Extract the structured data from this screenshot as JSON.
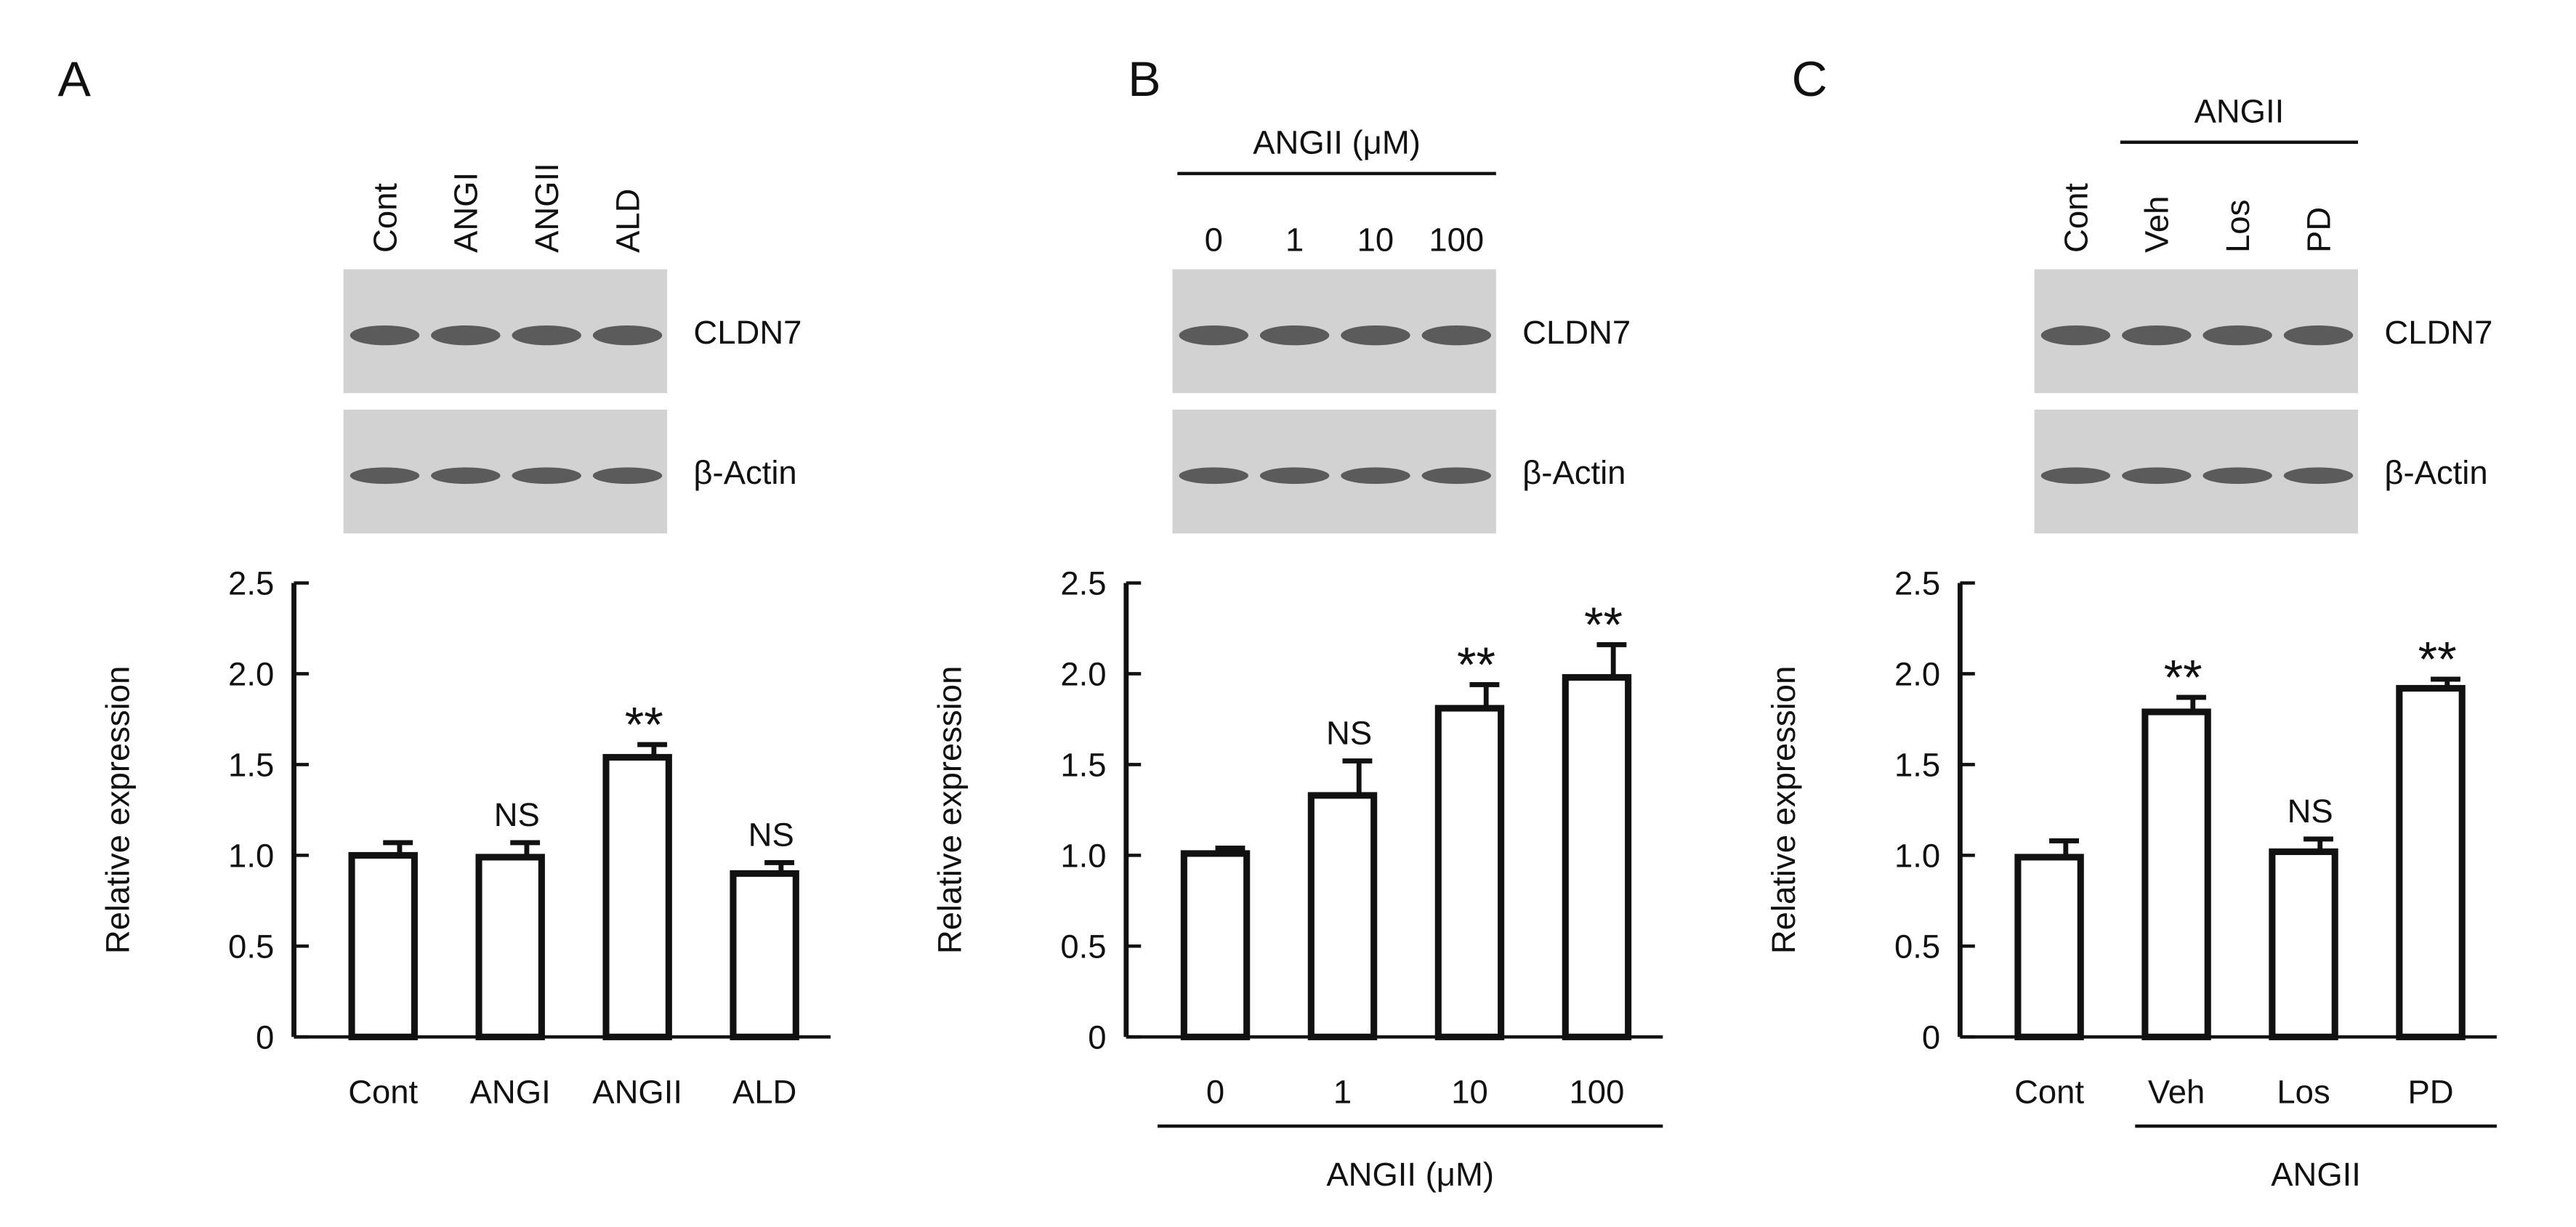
{
  "chart_data": [
    {
      "type": "bar",
      "panel": "A",
      "categories": [
        "Cont",
        "ANGI",
        "ANGII",
        "ALD"
      ],
      "values": [
        1.0,
        0.99,
        1.54,
        0.9
      ],
      "errors": [
        0.07,
        0.08,
        0.07,
        0.06
      ],
      "annotations": [
        null,
        "NS",
        "**",
        "NS"
      ],
      "blot_labels": [
        "CLDN7",
        "β-Actin"
      ],
      "y_label": "Relative expression",
      "ylim": [
        0,
        2.5
      ],
      "yticks": [
        0,
        0.5,
        {
          "value": 1,
          "label": "1.0"
        },
        1.5,
        {
          "value": 2,
          "label": "2.0"
        },
        2.5
      ],
      "color": "#ffffff"
    },
    {
      "type": "bar",
      "panel": "B",
      "categories": [
        "0",
        "1",
        "10",
        "100"
      ],
      "values": [
        1.01,
        1.33,
        1.81,
        1.98
      ],
      "errors": [
        0.03,
        0.19,
        0.13,
        0.18
      ],
      "annotations": [
        null,
        "NS",
        "**",
        "**"
      ],
      "group_label": "ANGII  (μM)",
      "blot_labels": [
        "CLDN7",
        "β-Actin"
      ],
      "y_label": "Relative expression",
      "ylim": [
        0,
        2.5
      ],
      "yticks": [
        0,
        0.5,
        {
          "value": 1,
          "label": "1.0"
        },
        1.5,
        {
          "value": 2,
          "label": "2.0"
        },
        2.5
      ],
      "color": "#ffffff"
    },
    {
      "type": "bar",
      "panel": "C",
      "categories": [
        "Cont",
        "Veh",
        "Los",
        "PD"
      ],
      "values": [
        0.99,
        1.79,
        1.02,
        1.92
      ],
      "errors": [
        0.09,
        0.08,
        0.07,
        0.05
      ],
      "annotations": [
        null,
        "**",
        "NS",
        "**"
      ],
      "group_label": "ANGII",
      "blot_labels": [
        "CLDN7",
        "β-Actin"
      ],
      "y_label": "Relative expression",
      "ylim": [
        0,
        2.5
      ],
      "yticks": [
        0,
        0.5,
        {
          "value": 1,
          "label": "1.0"
        },
        1.5,
        {
          "value": 2,
          "label": "2.0"
        },
        2.5
      ],
      "color": "#ffffff"
    }
  ]
}
